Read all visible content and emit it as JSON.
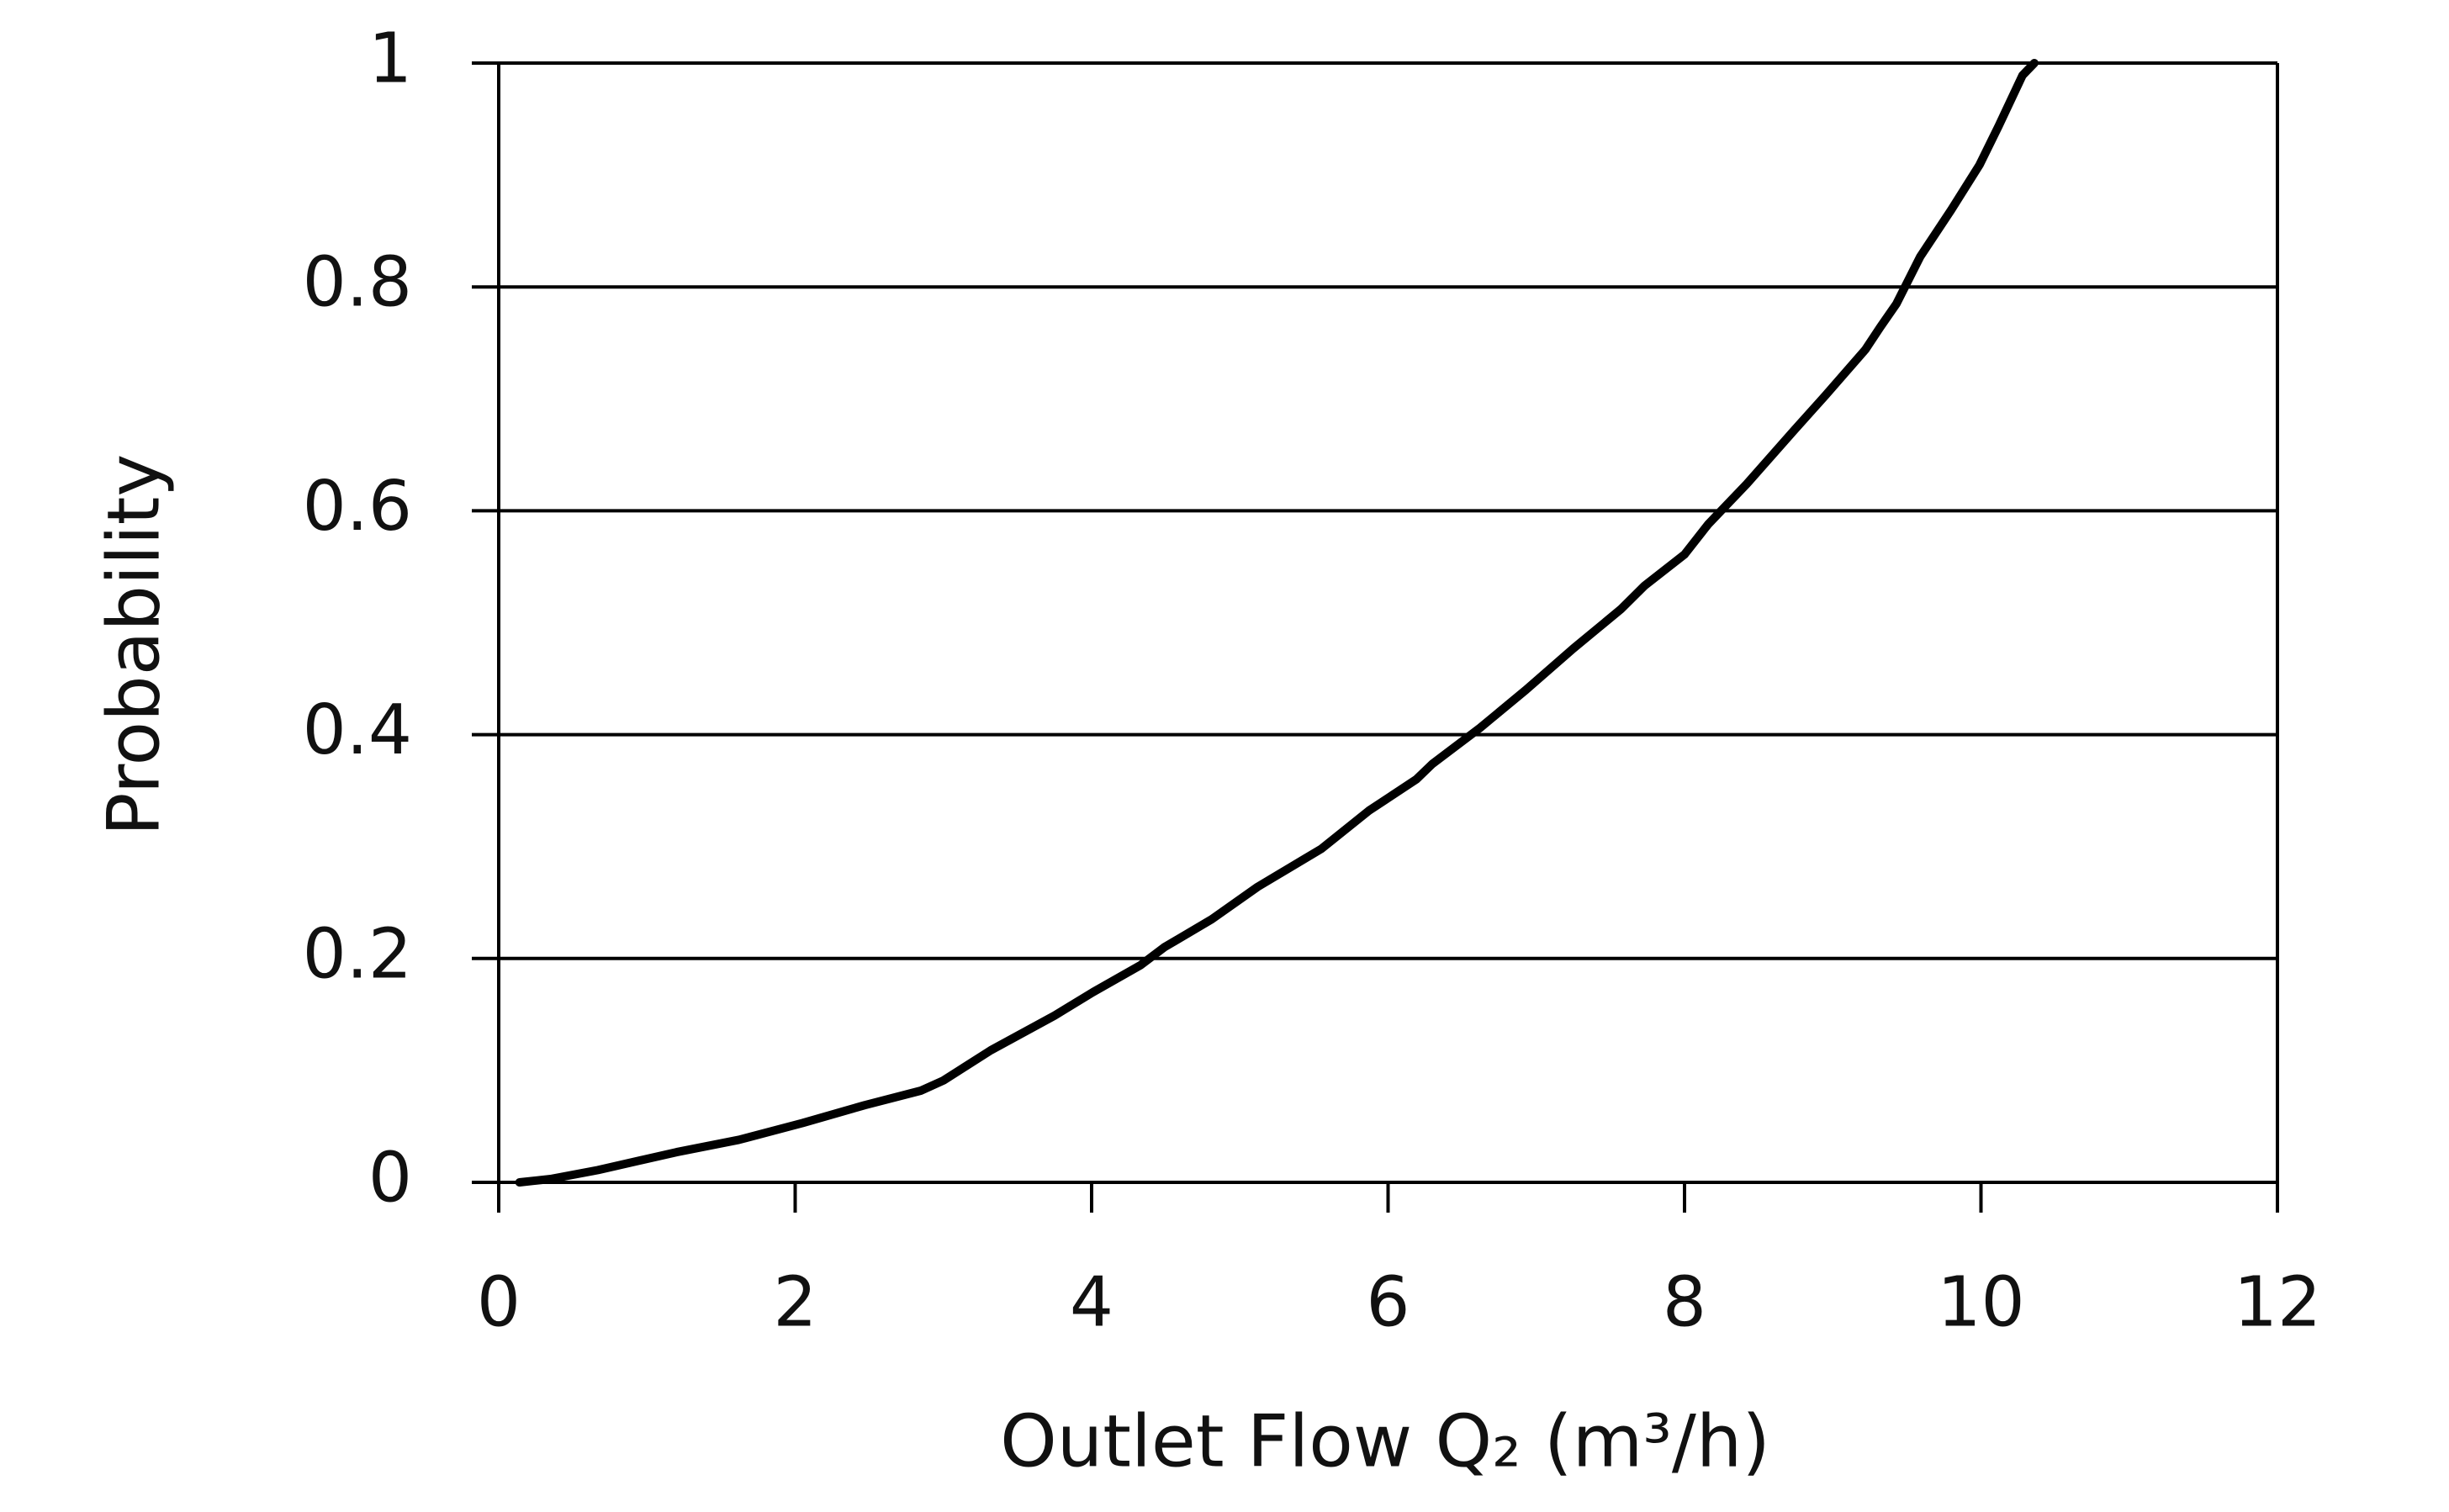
{
  "chart_data": {
    "type": "line",
    "x_label": "Outlet Flow Q₂ (m³/h)",
    "y_label": "Probability",
    "xlim": [
      0,
      12
    ],
    "xticks": [
      0,
      2,
      4,
      6,
      8,
      10,
      12
    ],
    "ylim": [
      0,
      1
    ],
    "yticks": [
      0,
      0.2,
      0.4,
      0.6,
      0.8,
      1
    ],
    "grid": true,
    "series": [
      {
        "color": "#000000",
        "x": [
          0.14,
          0.35,
          0.67,
          1.2,
          1.62,
          2.05,
          2.47,
          2.85,
          3.0,
          3.32,
          3.75,
          4.01,
          4.33,
          4.49,
          4.81,
          5.12,
          5.55,
          5.87,
          6.19,
          6.3,
          6.62,
          6.93,
          7.25,
          7.57,
          7.73,
          8.0,
          8.16,
          8.42,
          8.74,
          8.95,
          9.22,
          9.32,
          9.43,
          9.59,
          9.8,
          9.99,
          10.12,
          10.28,
          10.36
        ],
        "values": [
          0,
          0.003,
          0.011,
          0.027,
          0.038,
          0.053,
          0.069,
          0.082,
          0.091,
          0.118,
          0.149,
          0.17,
          0.194,
          0.21,
          0.235,
          0.264,
          0.298,
          0.332,
          0.36,
          0.374,
          0.406,
          0.44,
          0.477,
          0.512,
          0.533,
          0.561,
          0.588,
          0.624,
          0.672,
          0.703,
          0.744,
          0.764,
          0.785,
          0.827,
          0.869,
          0.909,
          0.944,
          0.989,
          1.0
        ]
      }
    ]
  }
}
